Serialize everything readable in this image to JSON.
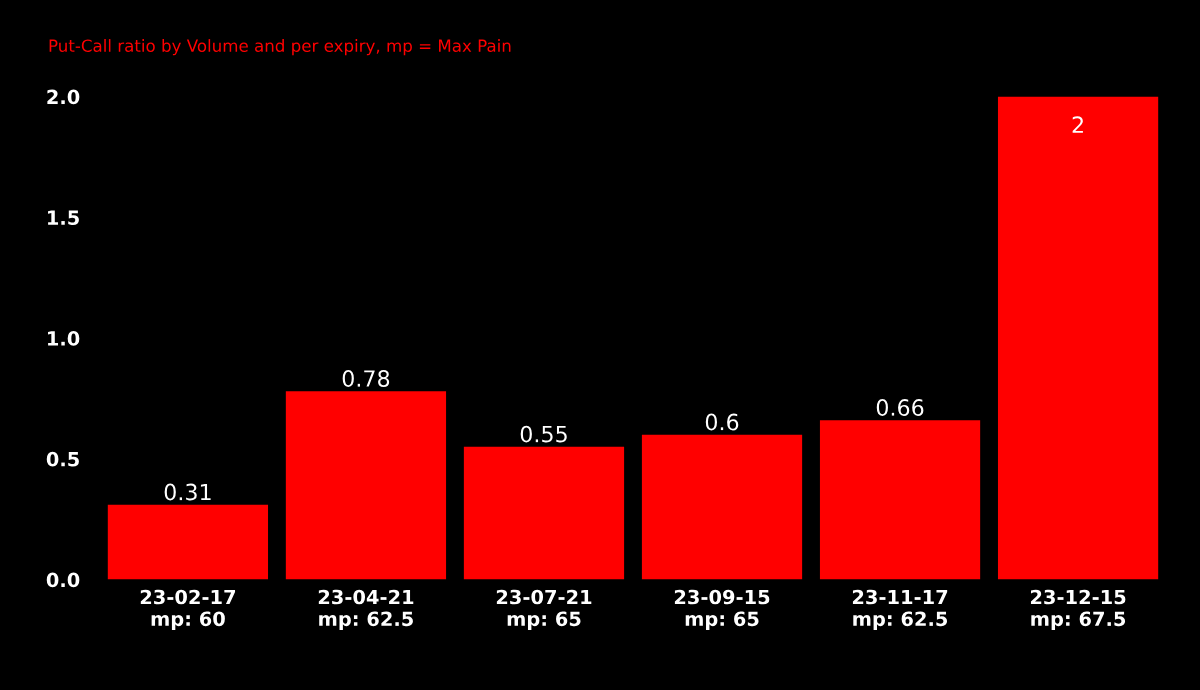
{
  "chart_data": {
    "type": "bar",
    "subtitle": "Put-Call ratio by Volume and per expiry, mp = Max Pain",
    "categories": [
      "23-02-17\nmp: 60",
      "23-04-21\nmp: 62.5",
      "23-07-21\nmp: 65",
      "23-09-15\nmp: 65",
      "23-11-17\nmp: 62.5",
      "23-12-15\nmp: 67.5"
    ],
    "values": [
      0.31,
      0.78,
      0.55,
      0.6,
      0.66,
      2
    ],
    "color": "#ff0000",
    "ylim": [
      0,
      2.0
    ],
    "yticks": [
      {
        "value": 0,
        "label": "0.0"
      },
      {
        "value": 0.5,
        "label": "0.5"
      },
      {
        "value": 1,
        "label": "1.0"
      },
      {
        "value": 1.5,
        "label": "1.5"
      },
      {
        "value": 2,
        "label": "2.0"
      }
    ],
    "data_labels": true
  }
}
